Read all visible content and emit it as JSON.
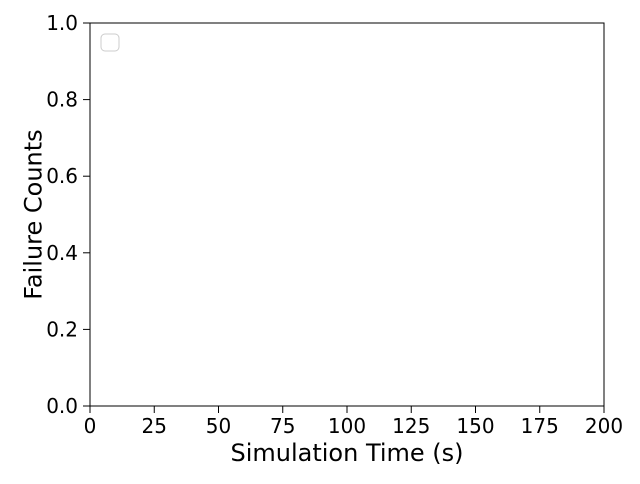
{
  "chart_data": {
    "type": "line",
    "title": "",
    "xlabel": "Simulation Time (s)",
    "ylabel": "Failure Counts",
    "xlim": [
      0,
      200
    ],
    "ylim": [
      0,
      1
    ],
    "x_ticks": [
      "0",
      "25",
      "50",
      "75",
      "100",
      "125",
      "150",
      "175",
      "200"
    ],
    "y_ticks": [
      "0.0",
      "0.2",
      "0.4",
      "0.6",
      "0.8",
      "1.0"
    ],
    "grid": false,
    "legend": {
      "placement": "upper-left",
      "entries": []
    },
    "series": []
  }
}
